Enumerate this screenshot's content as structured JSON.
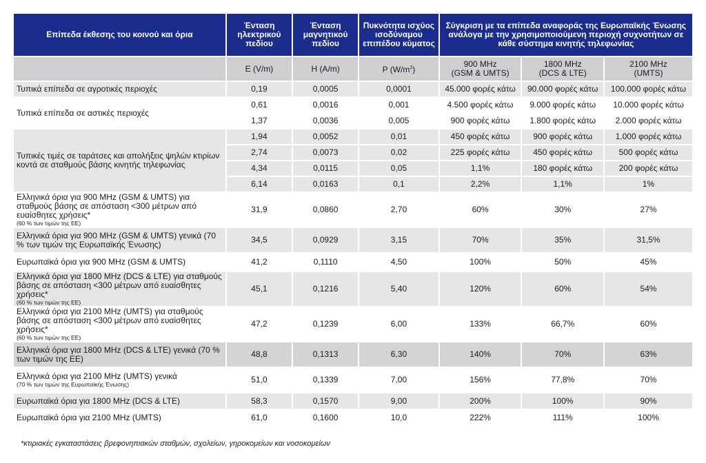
{
  "header": {
    "col1": "Επίπεδα έκθεσης του κοινού και όρια",
    "col2": "Ένταση ηλεκτρικού πεδίου",
    "col3": "Ένταση μαγνητικού πεδίου",
    "col4": "Πυκνότητα ισχύος ισοδύναμου επιπέδου κύματος",
    "col5": "Σύγκριση με τα επίπεδα αναφοράς της Ευρωπαϊκής Ένωσης ανάλογα με την χρησιμοποιούμενη περιοχή συχνοτήτων σε κάθε σύστημα κινητής τηλεφωνίας"
  },
  "units": {
    "e": "E (V/m)",
    "h": "H (A/m)",
    "p_pre": "P (W/m",
    "p_sup": "2",
    "p_post": ")",
    "f900_a": "900 MHz",
    "f900_b": "(GSM & UMTS)",
    "f1800_a": "1800 MHz",
    "f1800_b": "(DCS & LTE)",
    "f2100_a": "2100 MHz",
    "f2100_b": "(UMTS)"
  },
  "rows": [
    {
      "label": "Τυπικά επίπεδα σε αγροτικές περιοχές",
      "e": "0,19",
      "h": "0,0005",
      "p": "0,0001",
      "c900": "45.000 φορές κάτω",
      "c1800": "90.000 φορές κάτω",
      "c2100": "100.000 φορές κάτω"
    },
    {
      "label": "Τυπικά επίπεδα σε αστικές περιοχές",
      "e": "0,61",
      "h": "0,0016",
      "p": "0,001",
      "c900": "4.500 φορές κάτω",
      "c1800": "9.000 φορές κάτω",
      "c2100": "10.000 φορές κάτω"
    },
    {
      "label": "",
      "e": "1,37",
      "h": "0,0036",
      "p": "0,005",
      "c900": "900 φορές κάτω",
      "c1800": "1.800 φορές κάτω",
      "c2100": "2.000 φορές κάτω"
    },
    {
      "label": "Τυπικές τιμές σε ταράτσες και απολήξεις ψηλών κτιρίων κοντά σε σταθμούς βάσης κινητής τηλεφωνίας",
      "e": "1,94",
      "h": "0,0052",
      "p": "0,01",
      "c900": "450 φορές κάτω",
      "c1800": "900 φορές κάτω",
      "c2100": "1.000 φορές κάτω"
    },
    {
      "label": "",
      "e": "2,74",
      "h": "0,0073",
      "p": "0,02",
      "c900": "225 φορές κάτω",
      "c1800": "450 φορές κάτω",
      "c2100": "500 φορές κάτω"
    },
    {
      "label": "",
      "e": "4,34",
      "h": "0,0115",
      "p": "0,05",
      "c900": "1,1%",
      "c1800": "180 φορές κάτω",
      "c2100": "200 φορές κάτω"
    },
    {
      "label": "",
      "e": "6,14",
      "h": "0,0163",
      "p": "0,1",
      "c900": "2,2%",
      "c1800": "1,1%",
      "c2100": "1%"
    },
    {
      "label": "Ελληνικά όρια για 900 MHz (GSM & UMTS) για σταθμούς βάσης σε απόσταση <300 μέτρων από ευαίσθητες χρήσεις*",
      "note": "(60 % των τιμών της ΕΕ)",
      "e": "31,9",
      "h": "0,0860",
      "p": "2,70",
      "c900": "60%",
      "c1800": "30%",
      "c2100": "27%"
    },
    {
      "label": "Ελληνικά όρια για 900 MHz (GSM & UMTS) γενικά (70 % των τιμών της Ευρωπαϊκής Ένωσης)",
      "e": "34,5",
      "h": "0,0929",
      "p": "3,15",
      "c900": "70%",
      "c1800": "35%",
      "c2100": "31,5%"
    },
    {
      "label": "Ευρωπαϊκά όρια για 900 MHz (GSM & UMTS)",
      "e": "41,2",
      "h": "0,1110",
      "p": "4,50",
      "c900": "100%",
      "c1800": "50%",
      "c2100": "45%"
    },
    {
      "label": "Ελληνικά όρια για 1800 MHz (DCS & LTE) για σταθμούς βάσης σε απόσταση <300 μέτρων από ευαίσθητες χρήσεις*",
      "note": "(60 % των τιμών της ΕΕ)",
      "e": "45,1",
      "h": "0,1216",
      "p": "5,40",
      "c900": "120%",
      "c1800": "60%",
      "c2100": "54%"
    },
    {
      "label": "Ελληνικά όρια για 2100 MHz (UMTS) για σταθμούς βάσης σε απόσταση <300 μέτρων από ευαίσθητες χρήσεις*",
      "note": "(60 % των τιμών της ΕΕ)",
      "e": "47,2",
      "h": "0,1239",
      "p": "6,00",
      "c900": "133%",
      "c1800": "66,7%",
      "c2100": "60%"
    },
    {
      "label": "Ελληνικά όρια για 1800 MHz (DCS & LTE) γενικά (70 % των τιμών της ΕΕ)",
      "e": "48,8",
      "h": "0,1313",
      "p": "6,30",
      "c900": "140%",
      "c1800": "70%",
      "c2100": "63%"
    },
    {
      "label": "Ελληνικά όρια για 2100 MHz (UMTS) γενικά",
      "note": "(70 % των τιμών της Ευρωπαϊκής Ένωσης)",
      "e": "51,0",
      "h": "0,1339",
      "p": "7,00",
      "c900": "156%",
      "c1800": "77,8%",
      "c2100": "70%"
    },
    {
      "label": "Ευρωπαϊκά όρια για 1800 MHz (DCS & LTE)",
      "e": "58,3",
      "h": "0,1570",
      "p": "9,00",
      "c900": "200%",
      "c1800": "100%",
      "c2100": "90%"
    },
    {
      "label": "Ευρωπαϊκά όρια για 2100 MHz (UMTS)",
      "e": "61,0",
      "h": "0,1600",
      "p": "10,0",
      "c900": "222%",
      "c1800": "111%",
      "c2100": "100%"
    }
  ],
  "footnote": "*κτιριακές εγκαταστάσεις βρεφονηπιακών σταθμών, σχολείων, γηροκομείων και νοσοκομείων"
}
